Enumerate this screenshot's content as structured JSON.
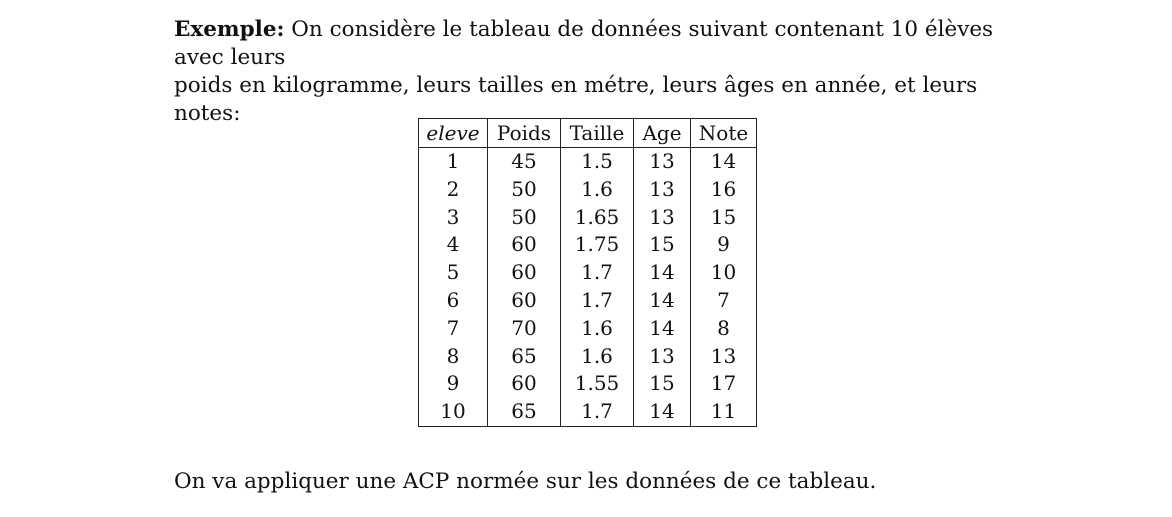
{
  "intro": {
    "label": "Exemple:",
    "line1": " On considère le tableau de données suivant contenant 10 élèves avec leurs",
    "line2": "poids en kilogramme, leurs tailles en métre, leurs âges en année, et leurs notes:"
  },
  "table": {
    "headers": [
      "eleve",
      "Poids",
      "Taille",
      "Age",
      "Note"
    ],
    "rows": [
      [
        "1",
        "45",
        "1.5",
        "13",
        "14"
      ],
      [
        "2",
        "50",
        "1.6",
        "13",
        "16"
      ],
      [
        "3",
        "50",
        "1.65",
        "13",
        "15"
      ],
      [
        "4",
        "60",
        "1.75",
        "15",
        "9"
      ],
      [
        "5",
        "60",
        "1.7",
        "14",
        "10"
      ],
      [
        "6",
        "60",
        "1.7",
        "14",
        "7"
      ],
      [
        "7",
        "70",
        "1.6",
        "14",
        "8"
      ],
      [
        "8",
        "65",
        "1.6",
        "13",
        "13"
      ],
      [
        "9",
        "60",
        "1.55",
        "15",
        "17"
      ],
      [
        "10",
        "65",
        "1.7",
        "14",
        "11"
      ]
    ]
  },
  "outro": "On va appliquer une ACP normée sur les données de ce tableau."
}
